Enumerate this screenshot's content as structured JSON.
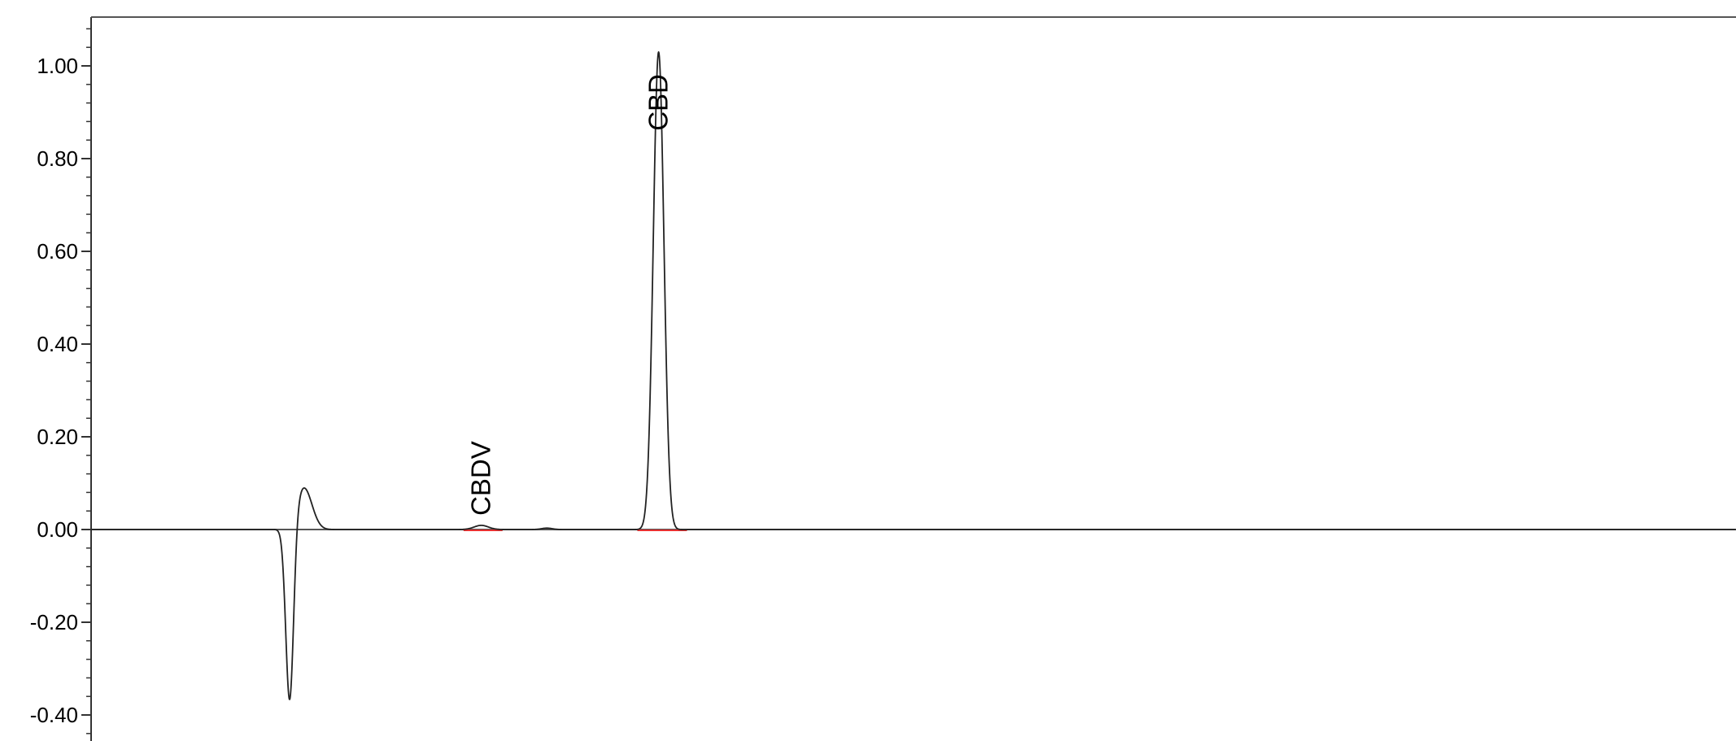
{
  "chart_data": {
    "type": "line",
    "title": "",
    "xlabel": "",
    "ylabel": "",
    "ylim": [
      -0.45,
      1.11
    ],
    "y_ticks": [
      {
        "value": 1.0,
        "label": "1.00"
      },
      {
        "value": 0.8,
        "label": "0.80"
      },
      {
        "value": 0.6,
        "label": "0.60"
      },
      {
        "value": 0.4,
        "label": "0.40"
      },
      {
        "value": 0.2,
        "label": "0.20"
      },
      {
        "value": 0.0,
        "label": "0.00"
      },
      {
        "value": -0.2,
        "label": "-0.20"
      },
      {
        "value": -0.4,
        "label": "-0.40"
      }
    ],
    "grid": false,
    "legend": "none",
    "series": [
      {
        "color": "#222222",
        "features": [
          {
            "center": 1.12,
            "width": 0.022,
            "height": -0.385
          },
          {
            "center": 1.2,
            "width": 0.045,
            "height": 0.09
          },
          {
            "center": 2.2,
            "width": 0.04,
            "height": 0.009
          },
          {
            "center": 2.57,
            "width": 0.03,
            "height": 0.003
          },
          {
            "center": 3.2,
            "width": 0.03,
            "height": 1.03
          }
        ]
      }
    ],
    "peaks": [
      {
        "name": "CBDV",
        "x": 2.2
      },
      {
        "name": "CBD",
        "x": 3.2
      }
    ],
    "baseline_color": "#e83030",
    "baseline_segments": [
      [
        2.1,
        2.32
      ],
      [
        3.08,
        3.36
      ]
    ]
  }
}
